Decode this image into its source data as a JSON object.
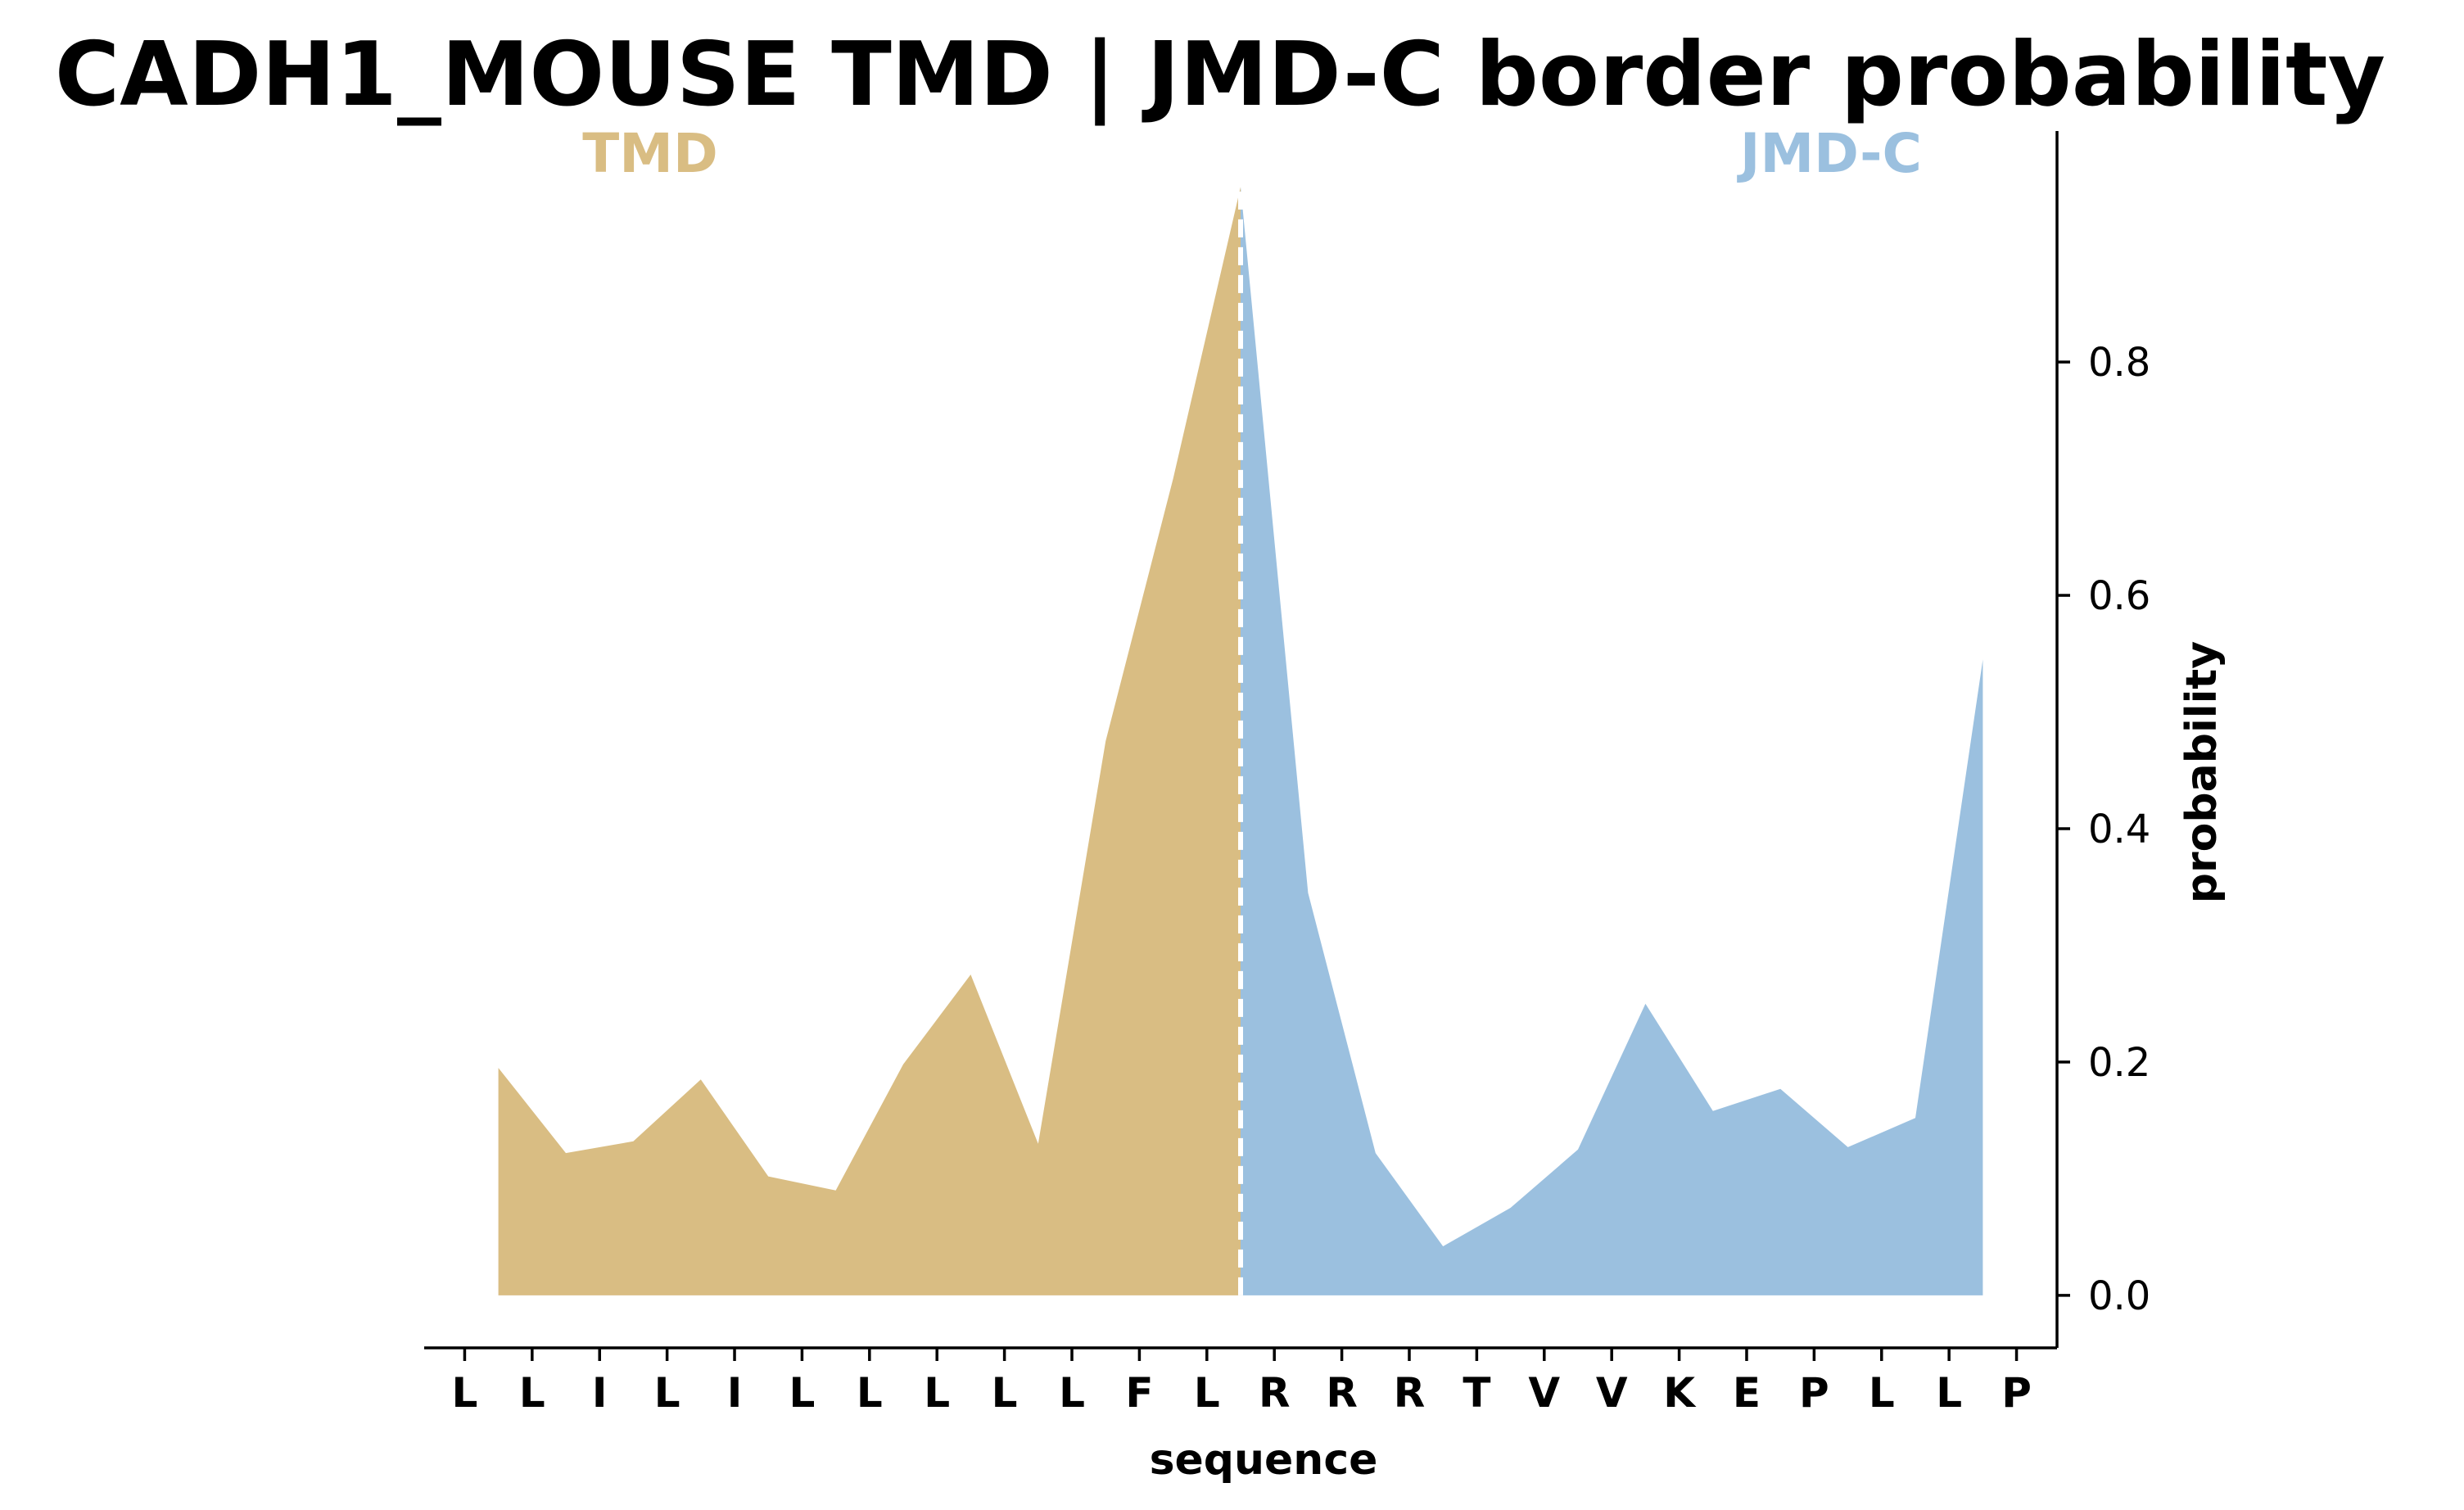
{
  "chart_data": {
    "type": "area",
    "title": "CADH1_MOUSE TMD | JMD-C border probability",
    "xlabel": "sequence",
    "ylabel": "probability",
    "categories": [
      "L",
      "L",
      "I",
      "L",
      "I",
      "L",
      "L",
      "L",
      "L",
      "L",
      "F",
      "L",
      "R",
      "R",
      "R",
      "T",
      "V",
      "V",
      "K",
      "E",
      "P",
      "L",
      "L",
      "P"
    ],
    "x": [
      0.5,
      1.5,
      2.5,
      3.5,
      4.5,
      5.5,
      6.5,
      7.5,
      8.5,
      9.5,
      10.5,
      11.5,
      12.5,
      13.5,
      14.5,
      15.5,
      16.5,
      17.5,
      18.5,
      19.5,
      20.5,
      21.5,
      22.5
    ],
    "y": [
      0.195,
      0.122,
      0.132,
      0.185,
      0.102,
      0.09,
      0.198,
      0.275,
      0.13,
      0.475,
      0.7,
      0.95,
      0.345,
      0.122,
      0.042,
      0.075,
      0.125,
      0.25,
      0.158,
      0.177,
      0.127,
      0.152,
      0.545
    ],
    "border_x": 11.5,
    "series": [
      {
        "name": "TMD",
        "color": "#d9bd83",
        "x_range": [
          0.5,
          11.5
        ]
      },
      {
        "name": "JMD-C",
        "color": "#9bc0df",
        "x_range": [
          11.5,
          22.5
        ]
      }
    ],
    "yticks": [
      0.0,
      0.2,
      0.4,
      0.6,
      0.8
    ],
    "ytick_labels": [
      "0.0",
      "0.2",
      "0.4",
      "0.6",
      "0.8"
    ],
    "ylim": [
      -0.045,
      0.998
    ],
    "xlim": [
      -0.6,
      23.6
    ],
    "y_axis_position": "right",
    "grid": false,
    "border_line_color": "#ffffff"
  }
}
